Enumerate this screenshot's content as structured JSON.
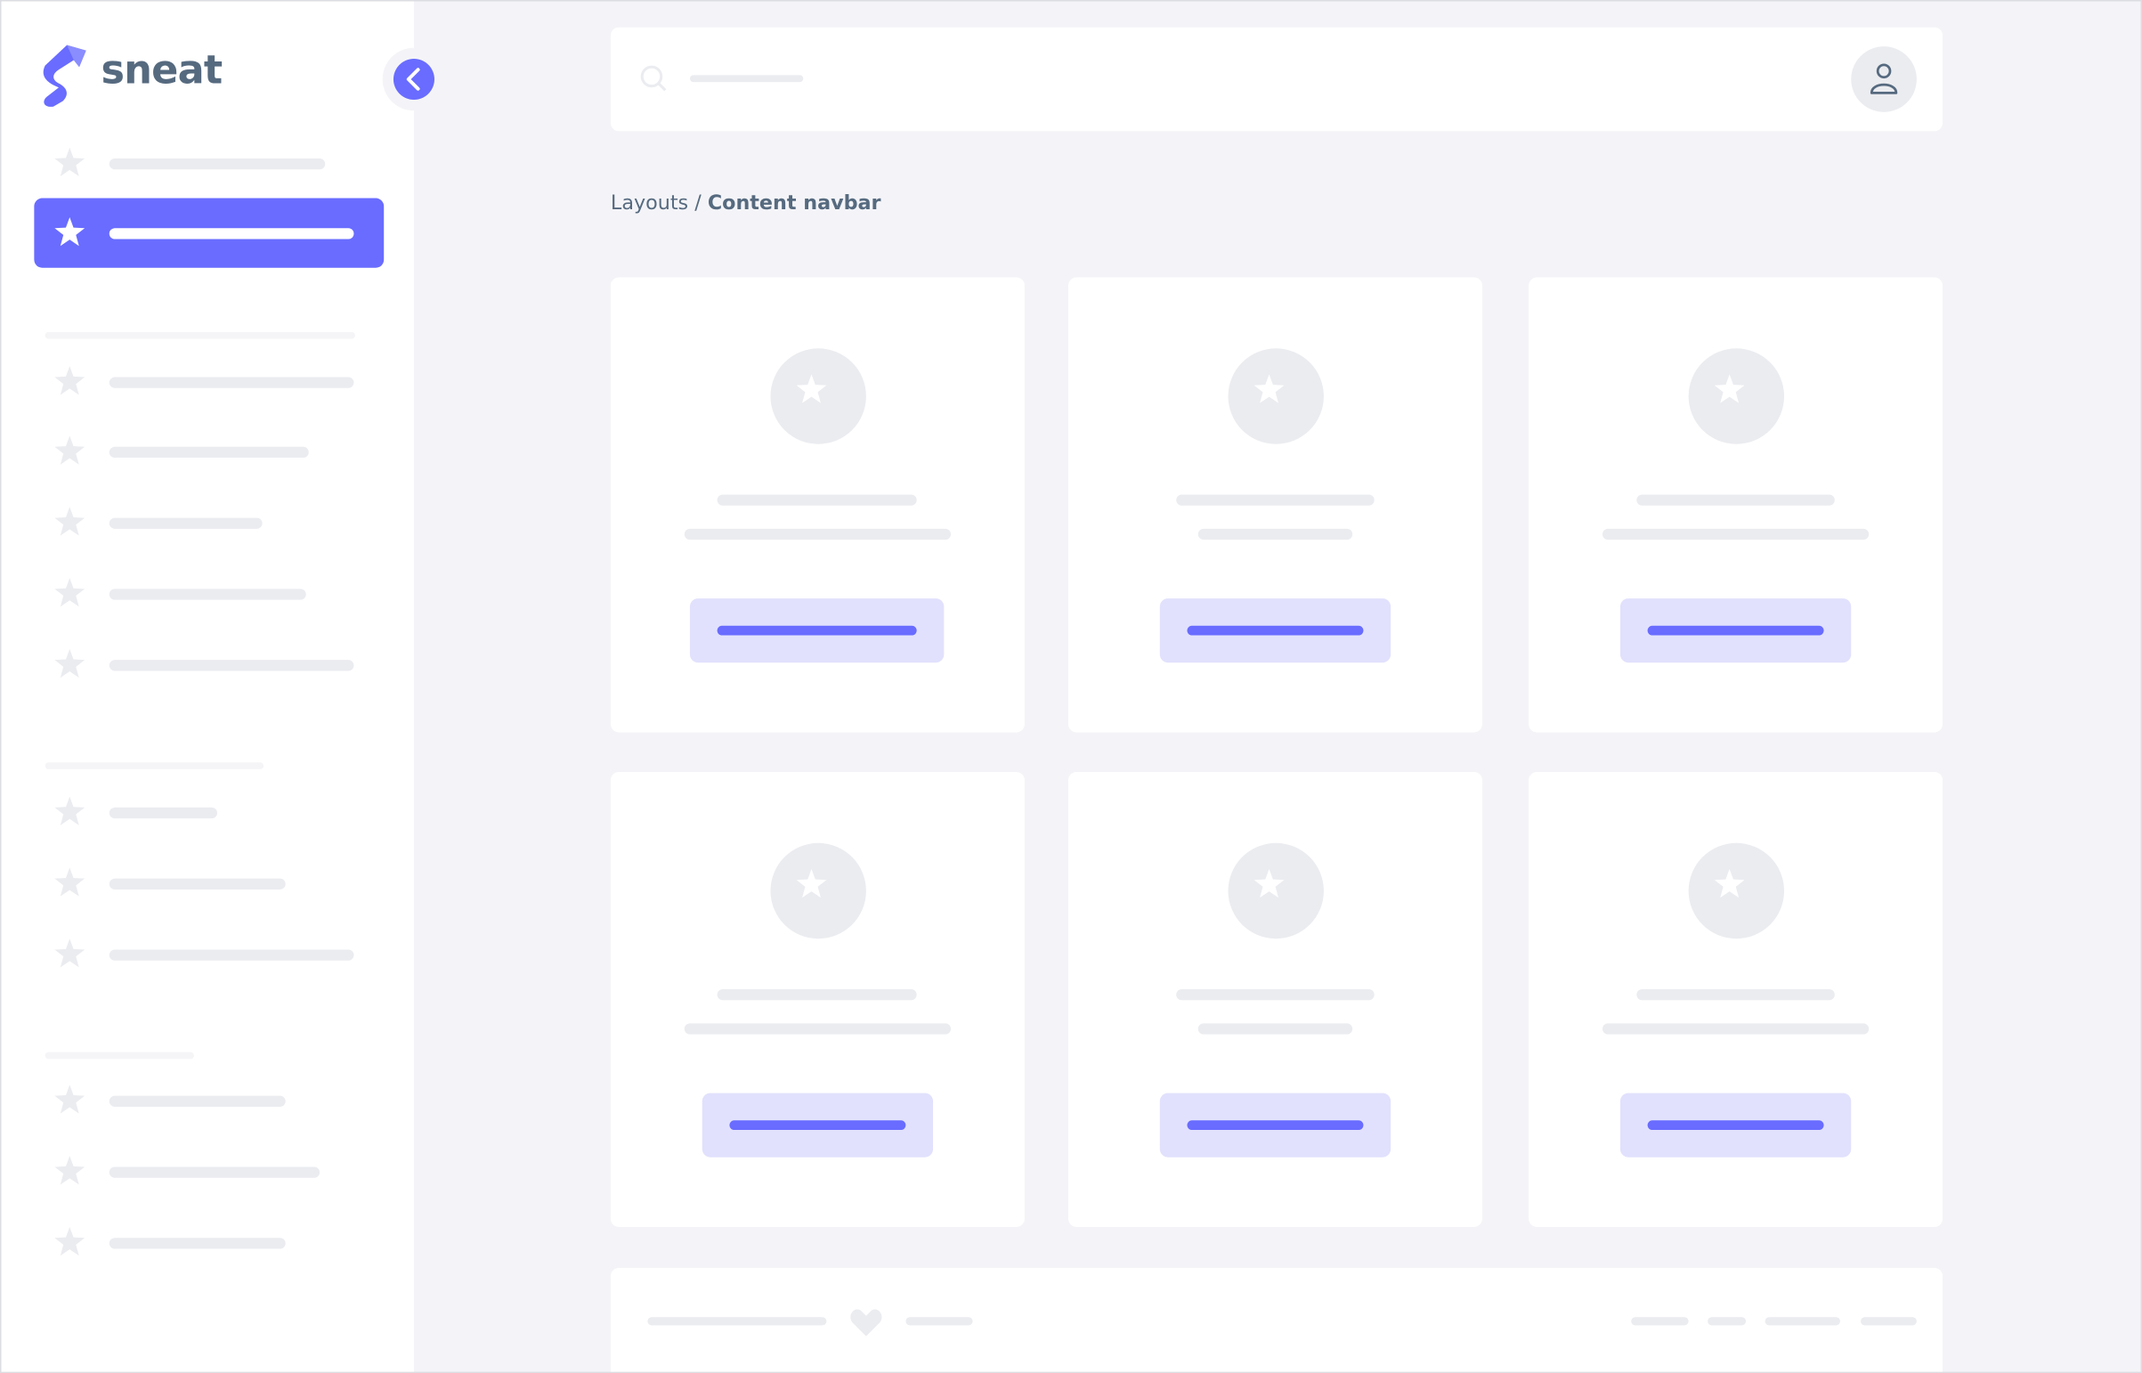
{
  "brand": {
    "name": "sneat",
    "accent_color": "#696cff",
    "text_color": "#566a7f"
  },
  "sidebar": {
    "collapse_icon": "chevron-left-icon",
    "item_icon": "star-icon",
    "active_index": 1
  },
  "navbar": {
    "search_icon": "search-icon",
    "avatar_icon": "user-icon"
  },
  "breadcrumb": {
    "parent": "Layouts",
    "separator": " / ",
    "current": "Content navbar"
  },
  "cards": {
    "count": 6,
    "icon": "star-icon"
  },
  "footer": {
    "icon": "heart-icon"
  }
}
